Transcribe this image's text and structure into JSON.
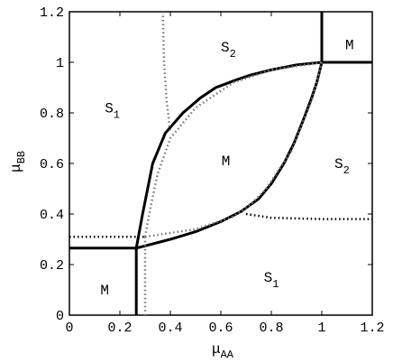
{
  "chart_data": {
    "type": "line",
    "xlim": [
      0,
      1.2
    ],
    "ylim": [
      0,
      1.2
    ],
    "xticks": [
      0,
      0.2,
      0.4,
      0.6,
      0.8,
      1,
      1.2
    ],
    "yticks": [
      0,
      0.2,
      0.4,
      0.6,
      0.8,
      1,
      1.2
    ],
    "xlabel": "μ",
    "xlabel_sub": "AA",
    "ylabel": "μ",
    "ylabel_sub": "BB",
    "series": [
      {
        "color": "#000000",
        "style": "solid",
        "x": [
          0,
          0.265,
          0.265
        ],
        "y": [
          0.265,
          0.265,
          0
        ]
      },
      {
        "color": "#000000",
        "style": "solid",
        "x": [
          0.265,
          0.29,
          0.33,
          0.38,
          0.45,
          0.52,
          0.58,
          0.66,
          0.72,
          0.8,
          0.9,
          1
        ],
        "y": [
          0.265,
          0.4,
          0.6,
          0.72,
          0.8,
          0.86,
          0.9,
          0.93,
          0.95,
          0.97,
          0.99,
          1
        ]
      },
      {
        "color": "#000000",
        "style": "solid",
        "x": [
          0.265,
          0.4,
          0.5,
          0.6,
          0.68,
          0.75,
          0.8,
          0.85,
          0.89,
          0.93,
          0.96,
          0.98,
          1
        ],
        "y": [
          0.265,
          0.3,
          0.33,
          0.37,
          0.41,
          0.46,
          0.52,
          0.6,
          0.68,
          0.78,
          0.86,
          0.92,
          1
        ]
      },
      {
        "color": "#000000",
        "style": "solid",
        "x": [
          1,
          1,
          1.2
        ],
        "y": [
          1.2,
          1,
          1
        ]
      },
      {
        "color": "#777777",
        "style": "dotted",
        "x": [
          0.37,
          0.375,
          0.385,
          0.4
        ],
        "y": [
          1.2,
          1,
          0.85,
          0.72
        ]
      },
      {
        "color": "#777777",
        "style": "dotted",
        "x": [
          0.3,
          0.32,
          0.35,
          0.4,
          0.5,
          0.65,
          0.8,
          1
        ],
        "y": [
          0.31,
          0.42,
          0.56,
          0.7,
          0.82,
          0.92,
          0.97,
          1
        ]
      },
      {
        "color": "#777777",
        "style": "dotted",
        "x": [
          0.3,
          0.5,
          0.65,
          0.72,
          0.78,
          0.88,
          0.96,
          1
        ],
        "y": [
          0.31,
          0.34,
          0.39,
          0.44,
          0.5,
          0.65,
          0.85,
          1
        ]
      },
      {
        "color": "#000000",
        "style": "dotted",
        "x": [
          0,
          0.3
        ],
        "y": [
          0.31,
          0.31
        ]
      },
      {
        "color": "#777777",
        "style": "dotted",
        "x": [
          0.3,
          0.3
        ],
        "y": [
          0.31,
          0
        ]
      },
      {
        "color": "#000000",
        "style": "dotted",
        "x": [
          0.7,
          0.8,
          1,
          1.2
        ],
        "y": [
          0.4,
          0.385,
          0.38,
          0.38
        ]
      }
    ],
    "annotations": [
      {
        "text": "S",
        "sub": "2",
        "x": 0.63,
        "y": 1.06
      },
      {
        "text": "M",
        "x": 1.11,
        "y": 1.07
      },
      {
        "text": "S",
        "sub": "1",
        "x": 0.17,
        "y": 0.82
      },
      {
        "text": "M",
        "x": 0.62,
        "y": 0.61
      },
      {
        "text": "S",
        "sub": "2",
        "x": 1.08,
        "y": 0.6
      },
      {
        "text": "S",
        "sub": "1",
        "x": 0.8,
        "y": 0.15
      },
      {
        "text": "M",
        "x": 0.14,
        "y": 0.1
      }
    ]
  }
}
